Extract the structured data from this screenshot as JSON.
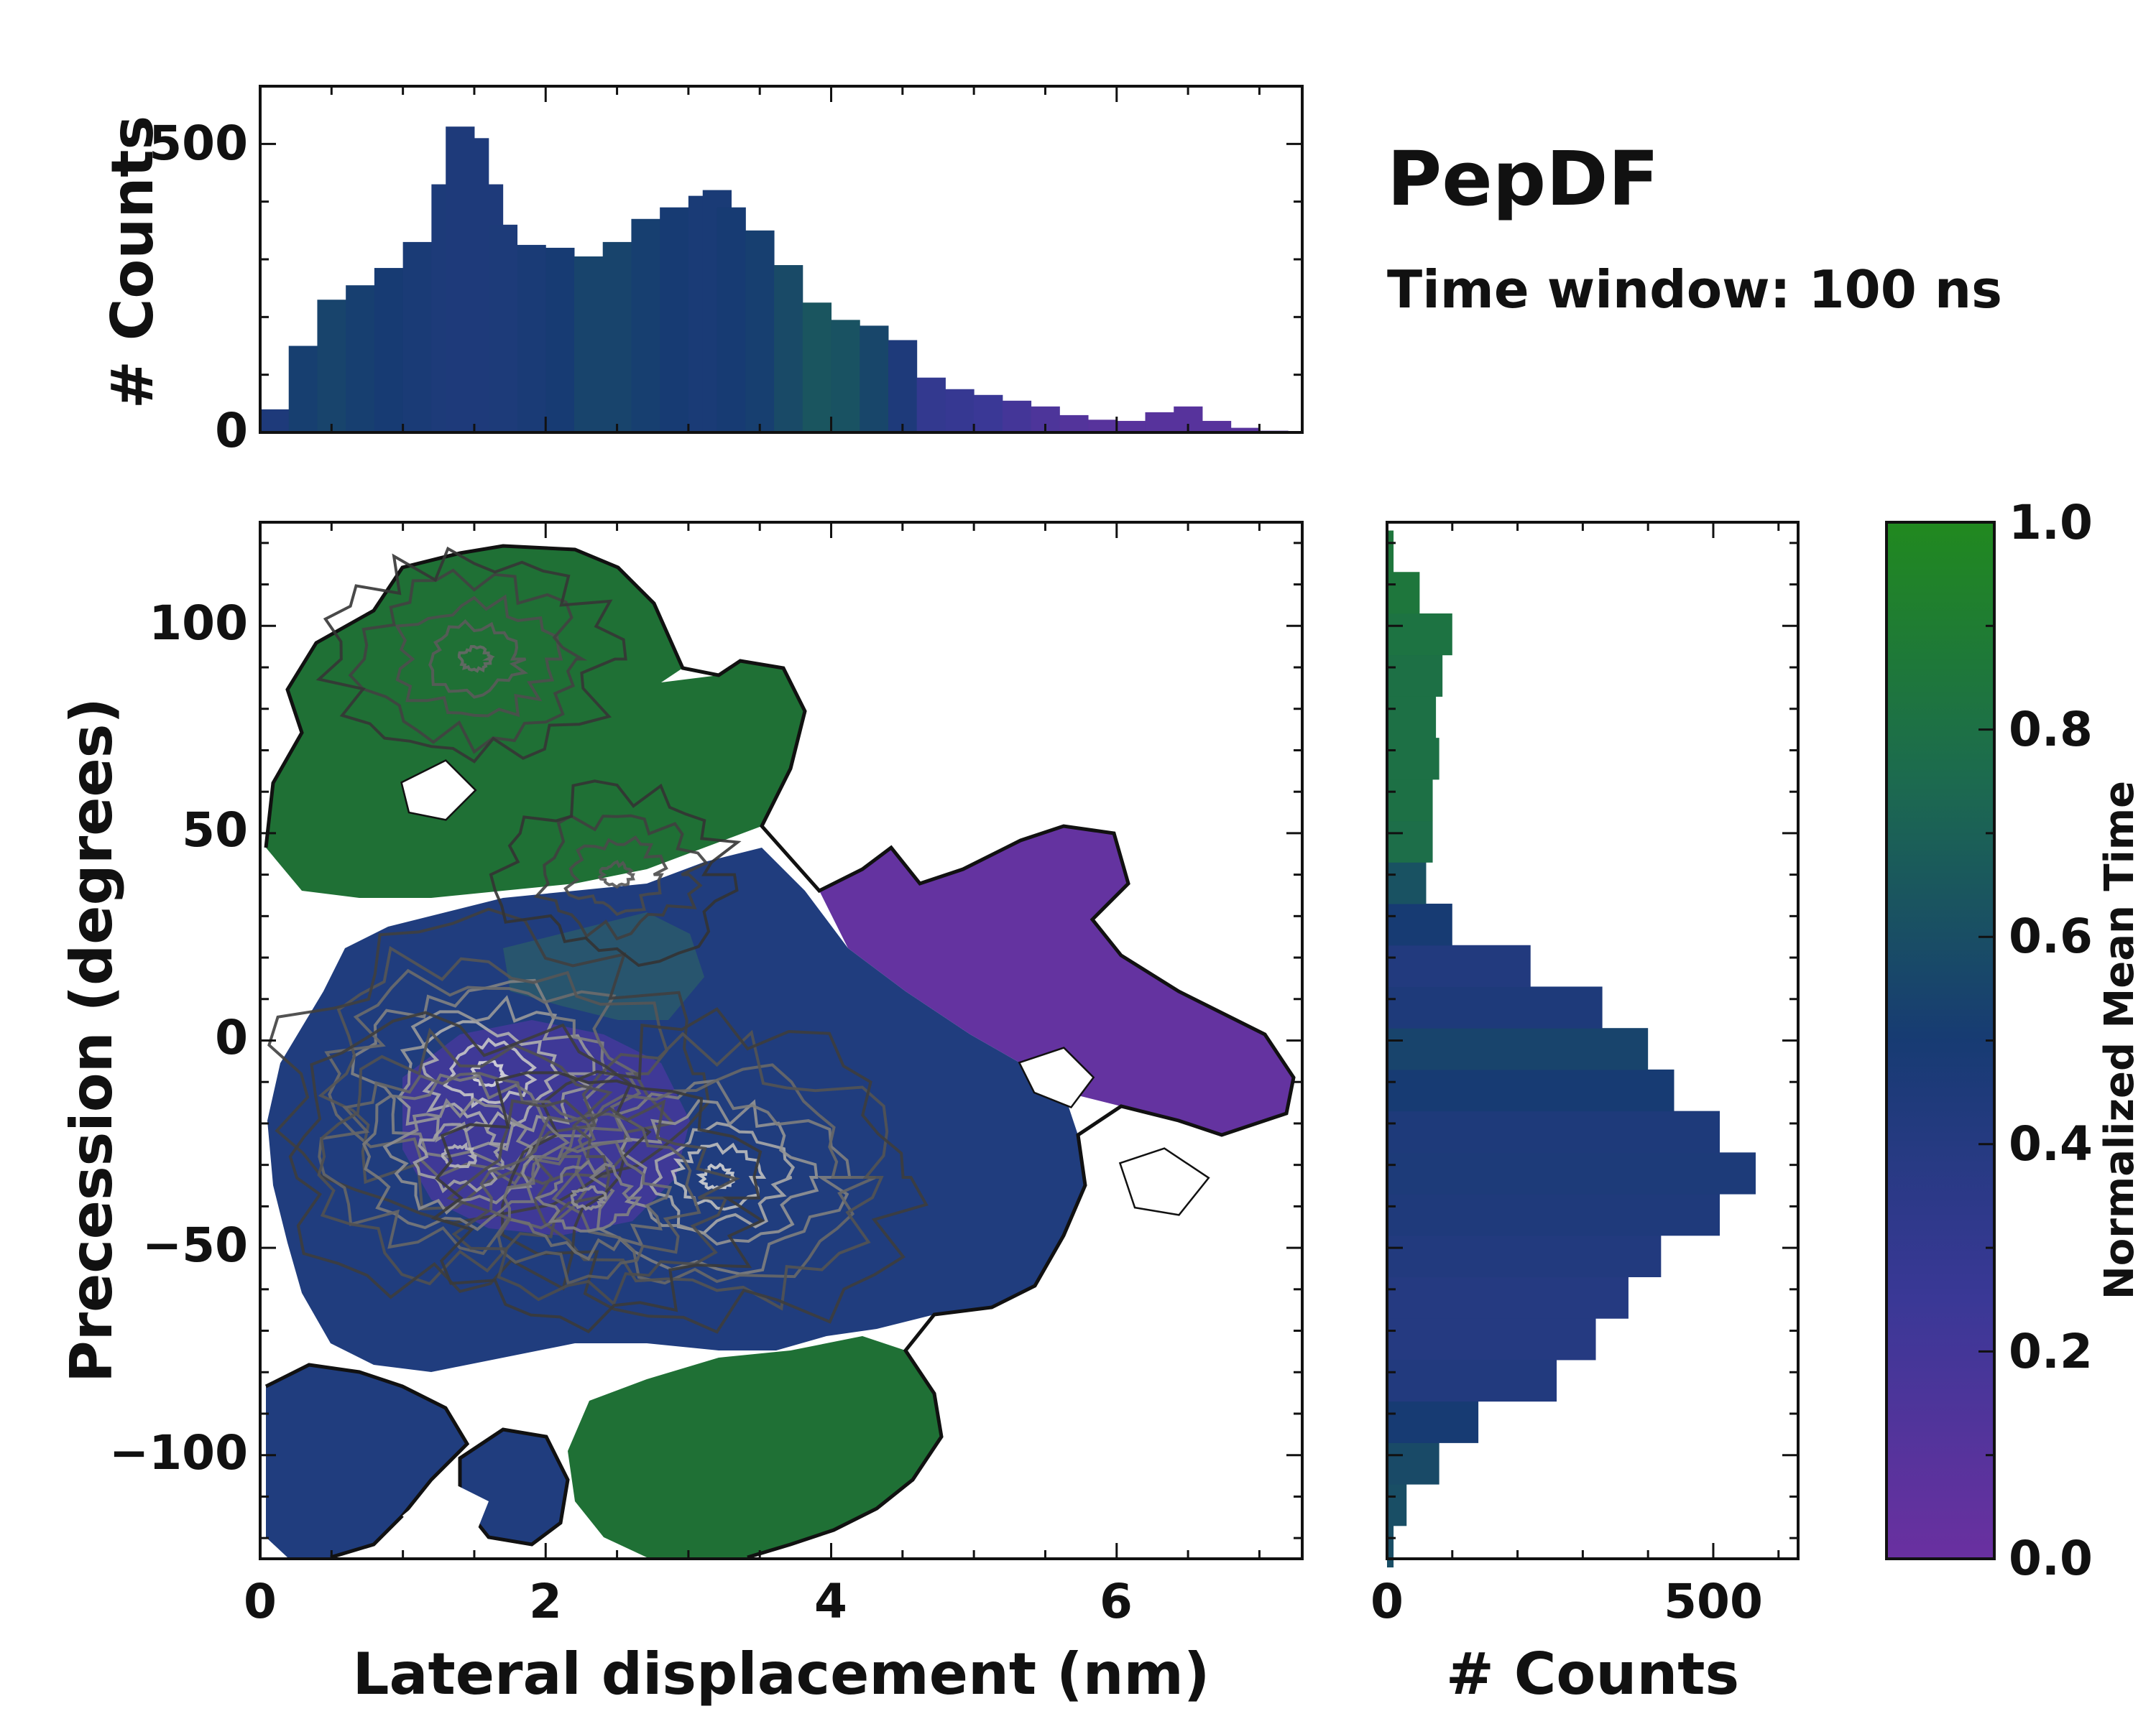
{
  "title": "PepDF",
  "subtitle": "Time window: 100 ns",
  "colors": {
    "low": "#6a30a0",
    "mid": "#173b73",
    "high": "#21891f",
    "contour_dark": "#1a1a1a",
    "contour_light": "#d8d8d8"
  },
  "chart_data": [
    {
      "id": "top_histogram",
      "type": "bar",
      "ylabel": "# Counts",
      "xlim": [
        0,
        7.3
      ],
      "ylim": [
        0,
        600
      ],
      "yticks": [
        "0",
        "500"
      ],
      "x": [
        0.1,
        0.3,
        0.5,
        0.7,
        0.9,
        1.1,
        1.3,
        1.4,
        1.5,
        1.6,
        1.7,
        1.9,
        2.1,
        2.3,
        2.5,
        2.7,
        2.9,
        3.1,
        3.2,
        3.3,
        3.5,
        3.7,
        3.9,
        4.1,
        4.3,
        4.5,
        4.7,
        4.9,
        5.1,
        5.3,
        5.5,
        5.7,
        5.9,
        6.1,
        6.3,
        6.5,
        6.7,
        6.9,
        7.1
      ],
      "values": [
        40,
        150,
        230,
        255,
        285,
        330,
        430,
        530,
        510,
        430,
        360,
        325,
        320,
        305,
        330,
        370,
        390,
        410,
        420,
        390,
        350,
        290,
        225,
        195,
        185,
        160,
        95,
        75,
        65,
        55,
        45,
        30,
        22,
        20,
        35,
        45,
        20,
        8,
        3
      ],
      "color_value": [
        0.45,
        0.52,
        0.55,
        0.52,
        0.5,
        0.48,
        0.46,
        0.45,
        0.45,
        0.45,
        0.46,
        0.48,
        0.5,
        0.55,
        0.55,
        0.52,
        0.5,
        0.48,
        0.48,
        0.5,
        0.52,
        0.58,
        0.64,
        0.62,
        0.56,
        0.45,
        0.3,
        0.28,
        0.25,
        0.2,
        0.15,
        0.12,
        0.1,
        0.1,
        0.1,
        0.1,
        0.1,
        0.1,
        0.1
      ]
    },
    {
      "id": "main_heatmap",
      "type": "heatmap",
      "xlabel": "Lateral displacement (nm)",
      "ylabel": "Precession (degrees)",
      "xlim": [
        0,
        7.3
      ],
      "ylim": [
        -125,
        125
      ],
      "xticks": [
        "0",
        "2",
        "4",
        "6"
      ],
      "yticks": [
        "100",
        "50",
        "0",
        "−50",
        "−100"
      ],
      "color_label": "Normalized Mean Time",
      "regions": [
        {
          "name": "upper-green cluster",
          "x": [
            0,
            3.6
          ],
          "y": [
            50,
            118
          ],
          "mean_time": 0.85
        },
        {
          "name": "right purple cluster",
          "x": [
            4.2,
            7.3
          ],
          "y": [
            -15,
            50
          ],
          "mean_time": 0.05
        },
        {
          "name": "central blue cluster",
          "x": [
            0.2,
            5.8
          ],
          "y": [
            -80,
            38
          ],
          "mean_time": 0.4
        },
        {
          "name": "lower-left blue cluster",
          "x": [
            0,
            2.1
          ],
          "y": [
            -125,
            -82
          ],
          "mean_time": 0.42
        },
        {
          "name": "lower-middle green cluster",
          "x": [
            2.3,
            4.8
          ],
          "y": [
            -125,
            -70
          ],
          "mean_time": 0.8
        }
      ],
      "density_peaks": [
        {
          "x": 1.6,
          "y": -8,
          "level": 1.0
        },
        {
          "x": 3.2,
          "y": -33,
          "level": 0.95
        },
        {
          "x": 1.4,
          "y": -28,
          "level": 0.8
        },
        {
          "x": 2.3,
          "y": -38,
          "level": 0.6
        },
        {
          "x": 1.5,
          "y": 92,
          "level": 0.35
        },
        {
          "x": 2.5,
          "y": 40,
          "level": 0.25
        }
      ]
    },
    {
      "id": "right_histogram",
      "type": "bar",
      "orientation": "horizontal",
      "xlabel": "# Counts",
      "xlim": [
        0,
        630
      ],
      "xticks": [
        "0",
        "500"
      ],
      "y": [
        -122,
        -112,
        -102,
        -92,
        -82,
        -72,
        -62,
        -52,
        -42,
        -32,
        -22,
        -12,
        -2,
        8,
        18,
        28,
        38,
        48,
        58,
        68,
        78,
        88,
        98,
        108,
        118
      ],
      "values": [
        10,
        30,
        80,
        140,
        260,
        320,
        370,
        420,
        510,
        565,
        510,
        440,
        400,
        330,
        220,
        100,
        60,
        70,
        70,
        80,
        75,
        85,
        100,
        50,
        10
      ],
      "color_value": [
        0.6,
        0.6,
        0.58,
        0.5,
        0.42,
        0.4,
        0.4,
        0.42,
        0.44,
        0.46,
        0.45,
        0.5,
        0.55,
        0.45,
        0.42,
        0.5,
        0.62,
        0.78,
        0.8,
        0.8,
        0.8,
        0.8,
        0.82,
        0.85,
        0.85
      ]
    },
    {
      "id": "colorbar",
      "type": "colorbar",
      "label": "Normalized Mean Time",
      "range": [
        0.0,
        1.0
      ],
      "ticks": [
        "0.0",
        "0.2",
        "0.4",
        "0.6",
        "0.8",
        "1.0"
      ]
    }
  ]
}
